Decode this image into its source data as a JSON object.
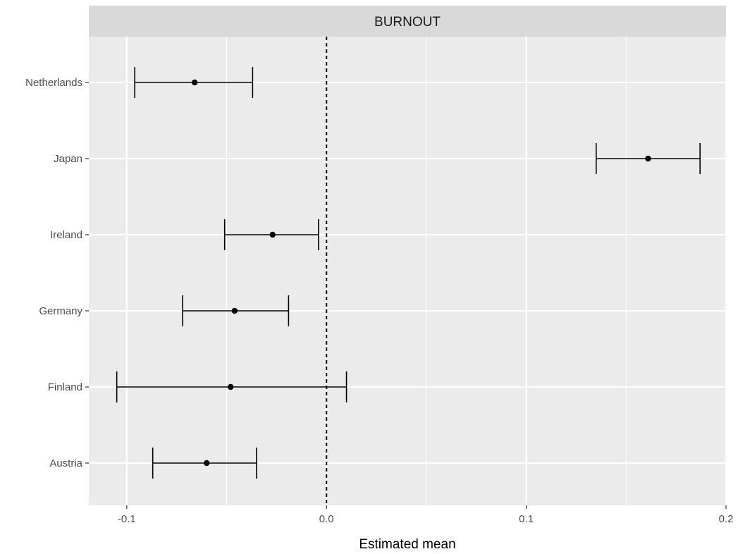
{
  "chart_data": {
    "type": "errorbar",
    "title": "",
    "facet_label": "BURNOUT",
    "xlabel": "Estimated mean",
    "ylabel": "",
    "xlim": [
      -0.119,
      0.2
    ],
    "x_ticks": [
      -0.1,
      0.0,
      0.1,
      0.2
    ],
    "x_tick_labels": [
      "-0.1",
      "0.0",
      "0.1",
      "0.2"
    ],
    "categories": [
      "Netherlands",
      "Japan",
      "Ireland",
      "Germany",
      "Finland",
      "Austria"
    ],
    "points": [
      {
        "label": "Netherlands",
        "estimate": -0.066,
        "lower": -0.096,
        "upper": -0.037
      },
      {
        "label": "Japan",
        "estimate": 0.161,
        "lower": 0.135,
        "upper": 0.187
      },
      {
        "label": "Ireland",
        "estimate": -0.027,
        "lower": -0.051,
        "upper": -0.004
      },
      {
        "label": "Germany",
        "estimate": -0.046,
        "lower": -0.072,
        "upper": -0.019
      },
      {
        "label": "Finland",
        "estimate": -0.048,
        "lower": -0.105,
        "upper": 0.01
      },
      {
        "label": "Austria",
        "estimate": -0.06,
        "lower": -0.087,
        "upper": -0.035
      }
    ],
    "reference_line": {
      "x": 0.0,
      "style": "dashed"
    },
    "grid": true,
    "colors": {
      "panel_bg": "#ebebeb",
      "strip_bg": "#d9d9d9",
      "grid": "#ffffff",
      "marks": "#000000"
    }
  }
}
